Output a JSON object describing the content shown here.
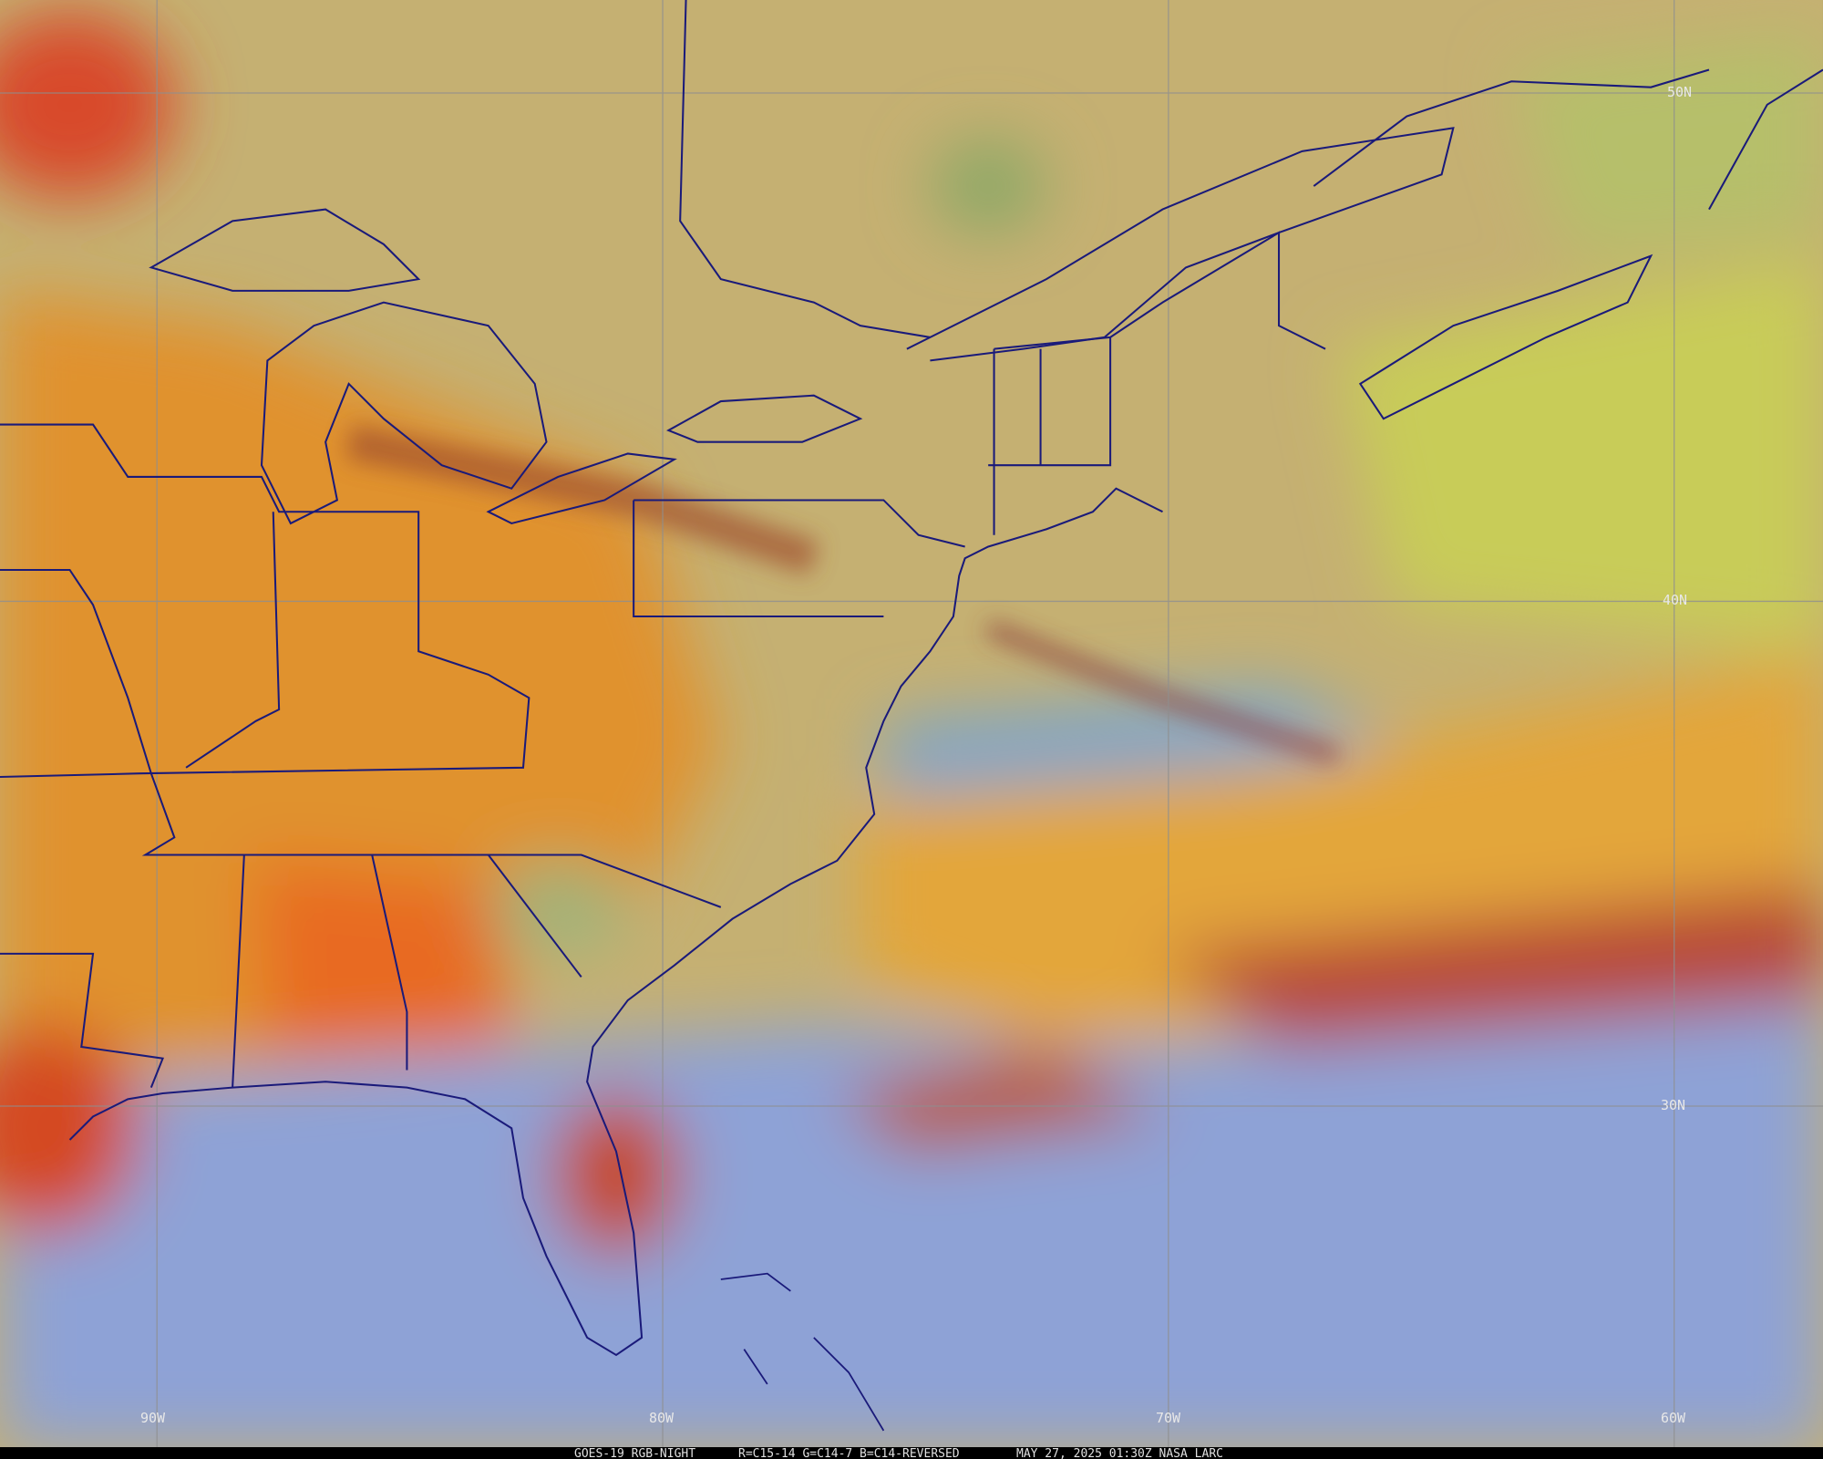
{
  "map": {
    "latitude_labels": [
      "50N",
      "40N",
      "30N"
    ],
    "longitude_labels": [
      "90W",
      "80W",
      "70W",
      "60W"
    ],
    "footer": {
      "satellite": "GOES-19 RGB-NIGHT",
      "channels": "R=C15-14 G=C14-7 B=C14-REVERSED",
      "time": "MAY 27, 2025 01:30Z NASA LARC"
    }
  }
}
